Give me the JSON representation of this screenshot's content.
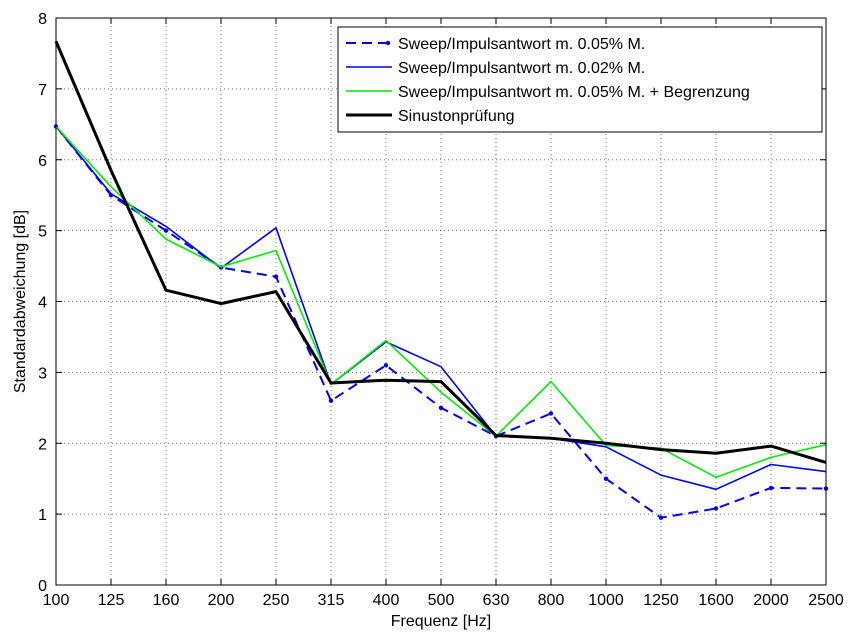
{
  "chart_data": {
    "type": "line",
    "xlabel": "Frequenz [Hz]",
    "ylabel": "Standardabweichung [dB]",
    "categories": [
      "100",
      "125",
      "160",
      "200",
      "250",
      "315",
      "400",
      "500",
      "630",
      "800",
      "1000",
      "1250",
      "1600",
      "2000",
      "2500"
    ],
    "yticks": [
      "0",
      "1",
      "2",
      "3",
      "4",
      "5",
      "6",
      "7",
      "8"
    ],
    "ylim": [
      0,
      8
    ],
    "grid": true,
    "legend_position": "top-right",
    "series": [
      {
        "name": "Sweep/Impulsantwort m. 0.05% M.",
        "color": "#0000ff",
        "style": "dashed-marker",
        "values": [
          6.47,
          5.5,
          5.0,
          4.48,
          4.35,
          2.6,
          3.1,
          2.5,
          2.1,
          2.42,
          1.5,
          0.95,
          1.08,
          1.37,
          1.36
        ]
      },
      {
        "name": "Sweep/Impulsantwort m. 0.02% M.",
        "color": "#0000ff",
        "style": "solid",
        "values": [
          6.47,
          5.52,
          5.06,
          4.47,
          5.04,
          2.83,
          3.43,
          3.08,
          2.1,
          2.07,
          1.95,
          1.55,
          1.35,
          1.7,
          1.6
        ]
      },
      {
        "name": "Sweep/Impulsantwort m. 0.05% M. + Begrenzung",
        "color": "#00ee00",
        "style": "solid",
        "values": [
          6.47,
          5.62,
          4.88,
          4.49,
          4.72,
          2.83,
          3.45,
          2.72,
          2.1,
          2.87,
          1.97,
          1.93,
          1.52,
          1.8,
          1.98
        ]
      },
      {
        "name": "Sinustonprüfung",
        "color": "#000000",
        "style": "thick",
        "values": [
          7.67,
          5.85,
          4.16,
          3.97,
          4.14,
          2.85,
          2.89,
          2.87,
          2.11,
          2.07,
          2.0,
          1.91,
          1.86,
          1.96,
          1.73
        ]
      }
    ]
  }
}
